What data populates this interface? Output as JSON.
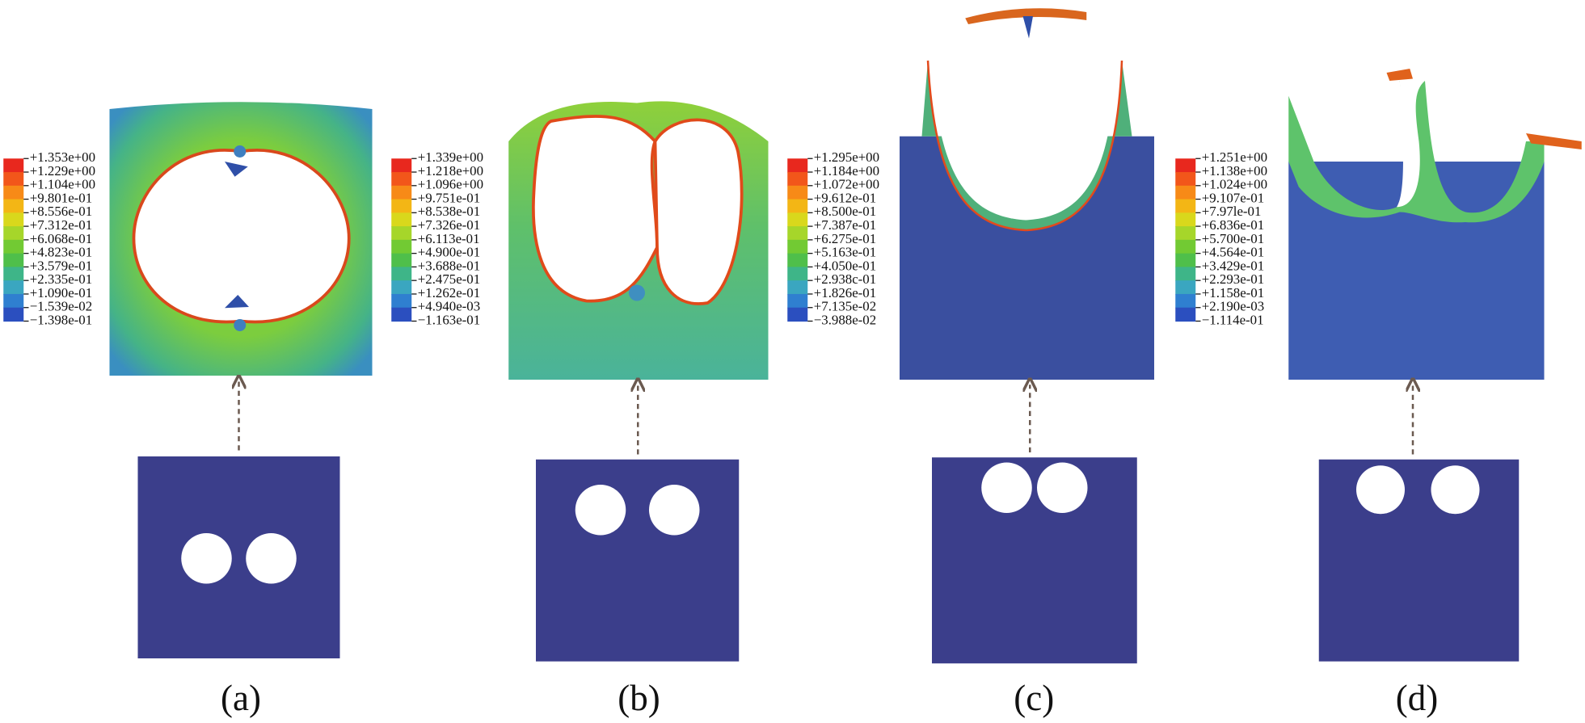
{
  "panels": [
    {
      "label": "(a)",
      "legend": [
        "+1.353e+00",
        "+1.229e+00",
        "+1.104e+00",
        "+9.801e-01",
        "+8.556e-01",
        "+7.312e-01",
        "+6.068e-01",
        "+4.823e-01",
        "+3.579e-01",
        "+2.335e-01",
        "+1.090e-01",
        "−1.539e-02",
        "−1.398e-01"
      ]
    },
    {
      "label": "(b)",
      "legend": [
        "+1.339e+00",
        "+1.218e+00",
        "+1.096e+00",
        "+9.751e-01",
        "+8.538e-01",
        "+7.326e-01",
        "+6.113e-01",
        "+4.900e-01",
        "+3.688e-01",
        "+2.475e-01",
        "+1.262e-01",
        "+4.940e-03",
        "−1.163e-01"
      ]
    },
    {
      "label": "(c)",
      "legend": [
        "+1.295e+00",
        "+1.184e+00",
        "+1.072e+00",
        "+9.612e-01",
        "+8.500e-01",
        "+7.387e-01",
        "+6.275e-01",
        "+5.163e-01",
        "+4.050e-01",
        "+2.938c-01",
        "+1.826e-01",
        "+7.135e-02",
        "−3.988e-02"
      ]
    },
    {
      "label": "(d)",
      "legend": [
        "+1.251e+00",
        "+1.138e+00",
        "+1.024e+00",
        "+9.107e-01",
        "+7.97le-01",
        "+6.836e-01",
        "+5.700e-01",
        "+4.564e-01",
        "+3.429e-01",
        "+2.293e-01",
        "+1.158e-01",
        "+2.190e-03",
        "−1.114e-01"
      ]
    }
  ]
}
